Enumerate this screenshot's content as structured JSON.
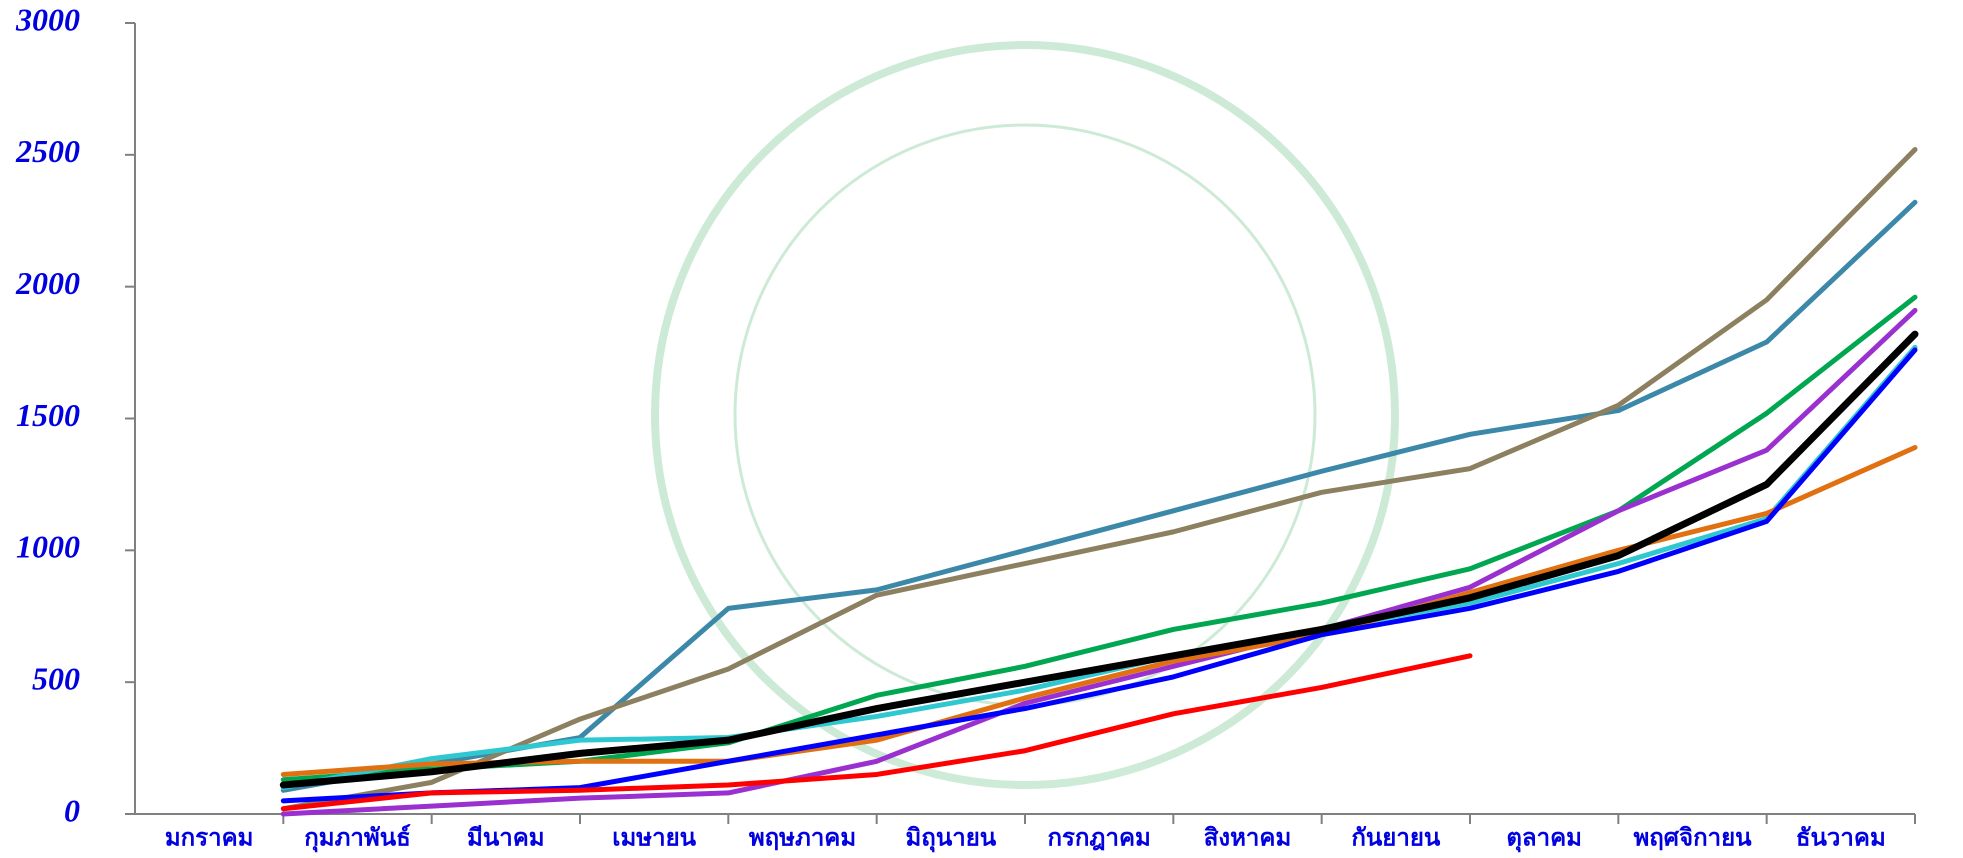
{
  "chart_data": {
    "type": "line",
    "categories": [
      "มกราคม",
      "กุมภาพันธ์",
      "มีนาคม",
      "เมษายน",
      "พฤษภาคม",
      "มิถุนายน",
      "กรกฎาคม",
      "สิงหาคม",
      "กันยายน",
      "ตุลาคม",
      "พฤศจิกายน",
      "ธันวาคม"
    ],
    "series": [
      {
        "color": "#3b88a8",
        "values": [
          90,
          190,
          290,
          780,
          850,
          1000,
          1150,
          1300,
          1440,
          1530,
          1790,
          2320
        ]
      },
      {
        "color": "#8c8060",
        "values": [
          20,
          120,
          360,
          550,
          830,
          950,
          1070,
          1220,
          1310,
          1550,
          1950,
          2520
        ]
      },
      {
        "color": "#00a650",
        "values": [
          130,
          170,
          200,
          270,
          450,
          560,
          700,
          800,
          930,
          1150,
          1520,
          1960
        ]
      },
      {
        "color": "#9b30d0",
        "values": [
          0,
          30,
          60,
          80,
          200,
          420,
          560,
          700,
          860,
          1150,
          1380,
          1910
        ]
      },
      {
        "color": "#30c8d0",
        "values": [
          100,
          210,
          280,
          290,
          370,
          470,
          600,
          700,
          800,
          950,
          1120,
          1770
        ]
      },
      {
        "color": "#e07010",
        "values": [
          150,
          190,
          200,
          200,
          280,
          440,
          580,
          680,
          840,
          1000,
          1140,
          1390
        ]
      },
      {
        "color": "#0000ff",
        "values": [
          50,
          80,
          100,
          200,
          300,
          400,
          520,
          680,
          780,
          920,
          1110,
          1760
        ]
      },
      {
        "color": "#ff0000",
        "values": [
          20,
          80,
          90,
          110,
          150,
          240,
          380,
          480,
          600,
          null,
          null,
          null
        ]
      },
      {
        "color": "#000000",
        "values": [
          110,
          160,
          230,
          280,
          400,
          500,
          600,
          700,
          820,
          980,
          1250,
          1820
        ]
      }
    ],
    "ylim": [
      0,
      3000
    ],
    "yticks": [
      0,
      500,
      1000,
      1500,
      2000,
      2500,
      3000
    ]
  }
}
